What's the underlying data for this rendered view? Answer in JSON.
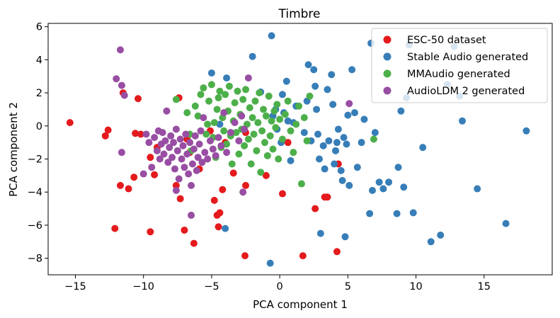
{
  "chart_data": {
    "type": "scatter",
    "title": "Timbre",
    "xlabel": "PCA component 1",
    "ylabel": "PCA component 2",
    "xlim": [
      -17,
      20
    ],
    "ylim": [
      -9,
      6.2
    ],
    "xticks": [
      -15,
      -10,
      -5,
      0,
      5,
      10,
      15
    ],
    "xtick_labels": [
      "−15",
      "−10",
      "−5",
      "0",
      "5",
      "10",
      "15"
    ],
    "yticks": [
      -8,
      -6,
      -4,
      -2,
      0,
      2,
      4,
      6
    ],
    "ytick_labels": [
      "−8",
      "−6",
      "−4",
      "−2",
      "0",
      "2",
      "4",
      "6"
    ],
    "grid": false,
    "legend_position": "top-right",
    "series": [
      {
        "name": "ESC-50 dataset",
        "color": "#e41a1c",
        "points": [
          [
            -15.4,
            0.2
          ],
          [
            -12.8,
            -0.6
          ],
          [
            -12.6,
            -0.25
          ],
          [
            -12.1,
            -6.2
          ],
          [
            -11.7,
            -3.6
          ],
          [
            -11.5,
            2.0
          ],
          [
            -11.1,
            -3.8
          ],
          [
            -10.7,
            -3.1
          ],
          [
            -10.6,
            -0.45
          ],
          [
            -10.4,
            1.65
          ],
          [
            -10.2,
            -0.5
          ],
          [
            -9.5,
            -6.4
          ],
          [
            -9.5,
            -1.9
          ],
          [
            -9.2,
            -2.95
          ],
          [
            -9.0,
            -1.3
          ],
          [
            -7.6,
            -3.6
          ],
          [
            -7.4,
            1.7
          ],
          [
            -7.3,
            -4.4
          ],
          [
            -7.0,
            -6.3
          ],
          [
            -6.8,
            -0.8
          ],
          [
            -6.6,
            -1.6
          ],
          [
            -6.3,
            -7.1
          ],
          [
            -5.9,
            -2.6
          ],
          [
            -5.1,
            -0.3
          ],
          [
            -4.8,
            -4.5
          ],
          [
            -4.6,
            -5.4
          ],
          [
            -4.5,
            -6.1
          ],
          [
            -4.4,
            -5.25
          ],
          [
            -4.2,
            -3.85
          ],
          [
            -4.0,
            -1.0
          ],
          [
            -3.4,
            -2.85
          ],
          [
            -2.5,
            -3.6
          ],
          [
            -2.55,
            -7.85
          ],
          [
            -2.5,
            -0.4
          ],
          [
            -1.0,
            -3.0
          ],
          [
            0.2,
            -4.1
          ],
          [
            0.6,
            -1.0
          ],
          [
            1.7,
            -7.85
          ],
          [
            2.6,
            -5.0
          ],
          [
            3.3,
            -4.3
          ],
          [
            3.5,
            -4.3
          ],
          [
            4.2,
            -7.6
          ],
          [
            4.3,
            -2.3
          ]
        ]
      },
      {
        "name": "Stable Audio generated",
        "color": "#377eb8",
        "points": [
          [
            -5.0,
            3.2
          ],
          [
            -4.4,
            0.1
          ],
          [
            -4.0,
            -6.2
          ],
          [
            -3.9,
            2.9
          ],
          [
            -2.0,
            4.2
          ],
          [
            -1.4,
            2.05
          ],
          [
            -0.7,
            -8.3
          ],
          [
            -0.6,
            5.45
          ],
          [
            -0.5,
            0.6
          ],
          [
            -0.3,
            1.0
          ],
          [
            -0.2,
            -0.2
          ],
          [
            0.1,
            -1.0
          ],
          [
            0.2,
            1.9
          ],
          [
            0.3,
            0.8
          ],
          [
            0.5,
            2.7
          ],
          [
            0.6,
            0.3
          ],
          [
            0.8,
            -2.1
          ],
          [
            1.0,
            0.2
          ],
          [
            1.2,
            1.2
          ],
          [
            1.8,
            -0.4
          ],
          [
            2.0,
            1.5
          ],
          [
            2.1,
            3.7
          ],
          [
            2.3,
            -0.9
          ],
          [
            2.5,
            3.4
          ],
          [
            2.6,
            2.4
          ],
          [
            2.7,
            1.0
          ],
          [
            2.8,
            -0.5
          ],
          [
            2.9,
            -2.0
          ],
          [
            3.0,
            -6.5
          ],
          [
            3.2,
            -1.2
          ],
          [
            3.3,
            -2.6
          ],
          [
            3.5,
            2.2
          ],
          [
            3.6,
            -0.9
          ],
          [
            3.8,
            3.1
          ],
          [
            3.9,
            1.3
          ],
          [
            4.0,
            -2.3
          ],
          [
            4.1,
            -1.5
          ],
          [
            4.2,
            -1.0
          ],
          [
            4.3,
            -0.2
          ],
          [
            4.5,
            -2.7
          ],
          [
            4.6,
            -3.3
          ],
          [
            4.7,
            -0.7
          ],
          [
            4.8,
            -6.7
          ],
          [
            4.9,
            -1.1
          ],
          [
            5.0,
            0.65
          ],
          [
            5.1,
            -3.6
          ],
          [
            5.3,
            3.4
          ],
          [
            5.5,
            0.8
          ],
          [
            5.7,
            -2.5
          ],
          [
            6.0,
            -1.0
          ],
          [
            6.2,
            0.4
          ],
          [
            6.6,
            -5.3
          ],
          [
            6.7,
            5.0
          ],
          [
            6.8,
            -3.9
          ],
          [
            7.0,
            -0.4
          ],
          [
            7.3,
            -3.4
          ],
          [
            7.6,
            -3.8
          ],
          [
            8.0,
            -3.4
          ],
          [
            8.6,
            -5.3
          ],
          [
            8.7,
            -2.5
          ],
          [
            8.9,
            0.9
          ],
          [
            9.1,
            -3.7
          ],
          [
            9.3,
            1.7
          ],
          [
            9.5,
            4.9
          ],
          [
            9.8,
            -5.25
          ],
          [
            10.5,
            -1.3
          ],
          [
            11.1,
            -7.0
          ],
          [
            11.8,
            -6.6
          ],
          [
            12.3,
            2.5
          ],
          [
            12.8,
            4.8
          ],
          [
            13.2,
            1.8
          ],
          [
            13.4,
            0.3
          ],
          [
            14.5,
            -3.8
          ],
          [
            16.6,
            -5.9
          ],
          [
            18.1,
            -0.3
          ]
        ]
      },
      {
        "name": "MMAudio generated",
        "color": "#4daf4a",
        "points": [
          [
            -7.6,
            1.6
          ],
          [
            -6.8,
            0.8
          ],
          [
            -6.6,
            -0.5
          ],
          [
            -6.5,
            -1.5
          ],
          [
            -6.2,
            1.2
          ],
          [
            -6.0,
            0.6
          ],
          [
            -5.8,
            1.9
          ],
          [
            -5.6,
            2.3
          ],
          [
            -5.4,
            -0.5
          ],
          [
            -5.3,
            0.1
          ],
          [
            -5.2,
            1.5
          ],
          [
            -5.0,
            2.5
          ],
          [
            -4.9,
            -0.7
          ],
          [
            -4.8,
            0.2
          ],
          [
            -4.7,
            -1.9
          ],
          [
            -4.6,
            1.0
          ],
          [
            -4.5,
            1.7
          ],
          [
            -4.4,
            2.1
          ],
          [
            -4.3,
            -1.3
          ],
          [
            -4.2,
            0.5
          ],
          [
            -4.1,
            -0.3
          ],
          [
            -4.0,
            1.9
          ],
          [
            -3.9,
            -1.1
          ],
          [
            -3.8,
            0.9
          ],
          [
            -3.7,
            2.4
          ],
          [
            -3.6,
            -0.6
          ],
          [
            -3.5,
            -2.3
          ],
          [
            -3.4,
            0.3
          ],
          [
            -3.3,
            1.4
          ],
          [
            -3.2,
            -0.4
          ],
          [
            -3.1,
            2.1
          ],
          [
            -3.0,
            -1.7
          ],
          [
            -2.9,
            0.7
          ],
          [
            -2.8,
            -0.2
          ],
          [
            -2.7,
            1.6
          ],
          [
            -2.6,
            -1.2
          ],
          [
            -2.5,
            2.2
          ],
          [
            -2.4,
            0.1
          ],
          [
            -2.3,
            -0.8
          ],
          [
            -2.2,
            1.1
          ],
          [
            -2.1,
            -2.3
          ],
          [
            -2.0,
            0.5
          ],
          [
            -1.9,
            -0.5
          ],
          [
            -1.8,
            1.5
          ],
          [
            -1.7,
            -1.5
          ],
          [
            -1.6,
            0.2
          ],
          [
            -1.5,
            2.0
          ],
          [
            -1.4,
            -2.8
          ],
          [
            -1.3,
            -0.3
          ],
          [
            -1.2,
            1.0
          ],
          [
            -1.1,
            -1.0
          ],
          [
            -1.0,
            0.6
          ],
          [
            -0.9,
            -1.8
          ],
          [
            -0.8,
            1.8
          ],
          [
            -0.7,
            -0.6
          ],
          [
            -0.6,
            0.3
          ],
          [
            -0.5,
            -1.4
          ],
          [
            -0.4,
            0.9
          ],
          [
            -0.3,
            -0.1
          ],
          [
            -0.2,
            1.3
          ],
          [
            -0.1,
            -2.0
          ],
          [
            0.0,
            0.4
          ],
          [
            0.2,
            -0.8
          ],
          [
            0.4,
            0.7
          ],
          [
            0.6,
            1.5
          ],
          [
            0.8,
            -0.3
          ],
          [
            1.0,
            -1.6
          ],
          [
            1.2,
            0.1
          ],
          [
            1.4,
            1.2
          ],
          [
            1.6,
            -3.5
          ],
          [
            1.8,
            0.5
          ],
          [
            2.0,
            -0.9
          ],
          [
            2.2,
            1.8
          ],
          [
            6.9,
            -0.8
          ]
        ]
      },
      {
        "name": "AudioLDM 2 generated",
        "color": "#984ea3",
        "points": [
          [
            -11.7,
            4.6
          ],
          [
            -12.0,
            2.85
          ],
          [
            -11.6,
            2.45
          ],
          [
            -11.4,
            1.85
          ],
          [
            -11.6,
            -1.6
          ],
          [
            -10.0,
            -2.9
          ],
          [
            -9.8,
            -0.5
          ],
          [
            -9.6,
            -1.0
          ],
          [
            -9.4,
            -2.5
          ],
          [
            -9.2,
            -0.7
          ],
          [
            -9.0,
            -1.5
          ],
          [
            -8.9,
            -0.3
          ],
          [
            -8.8,
            -2.0
          ],
          [
            -8.7,
            -1.1
          ],
          [
            -8.6,
            -0.4
          ],
          [
            -8.5,
            -1.7
          ],
          [
            -8.4,
            -0.9
          ],
          [
            -8.3,
            0.9
          ],
          [
            -8.2,
            -2.2
          ],
          [
            -8.1,
            -1.3
          ],
          [
            -8.0,
            -0.6
          ],
          [
            -7.9,
            -1.9
          ],
          [
            -7.8,
            -1.0
          ],
          [
            -7.7,
            -2.6
          ],
          [
            -7.6,
            -0.2
          ],
          [
            -7.5,
            -1.5
          ],
          [
            -7.4,
            -3.2
          ],
          [
            -7.3,
            -0.8
          ],
          [
            -7.2,
            -2.0
          ],
          [
            -7.1,
            -1.2
          ],
          [
            -7.0,
            -2.5
          ],
          [
            -6.9,
            -0.5
          ],
          [
            -6.8,
            -1.7
          ],
          [
            -6.7,
            -2.9
          ],
          [
            -6.6,
            -1.0
          ],
          [
            -6.5,
            -3.6
          ],
          [
            -6.4,
            -2.3
          ],
          [
            -6.3,
            -1.4
          ],
          [
            -6.2,
            -0.6
          ],
          [
            -6.1,
            -2.7
          ],
          [
            -6.0,
            -1.9
          ],
          [
            -5.9,
            -1.1
          ],
          [
            -5.8,
            -0.3
          ],
          [
            -5.7,
            -2.2
          ],
          [
            -5.6,
            0.5
          ],
          [
            -5.5,
            -1.6
          ],
          [
            -5.3,
            -2.0
          ],
          [
            -5.1,
            -0.9
          ],
          [
            -4.9,
            -1.4
          ],
          [
            -4.7,
            -1.8
          ],
          [
            -4.5,
            -0.7
          ],
          [
            -4.3,
            -1.2
          ],
          [
            -4.1,
            0.8
          ],
          [
            -3.9,
            -1.6
          ],
          [
            -3.6,
            -0.4
          ],
          [
            -3.3,
            0.2
          ],
          [
            -3.0,
            -0.9
          ],
          [
            -2.8,
            0.6
          ],
          [
            -2.6,
            -0.2
          ],
          [
            -2.3,
            2.9
          ],
          [
            -2.7,
            -4.0
          ],
          [
            -6.5,
            -5.4
          ],
          [
            -7.6,
            -3.9
          ],
          [
            5.1,
            1.35
          ]
        ]
      }
    ]
  }
}
